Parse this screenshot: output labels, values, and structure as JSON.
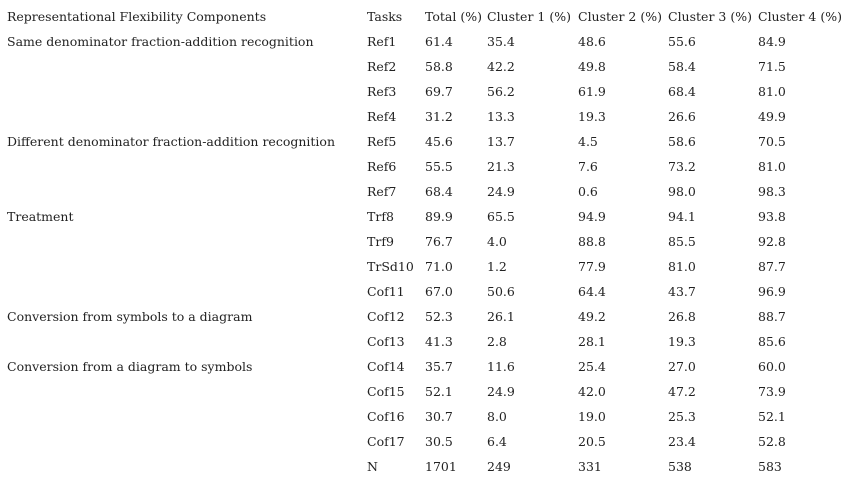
{
  "table": {
    "header": [
      "Representational Flexibility Components",
      "Tasks",
      "Total (%)",
      "Cluster 1 (%)",
      "Cluster 2 (%)",
      "Cluster 3 (%)",
      "Cluster 4 (%)"
    ],
    "groups": [
      {
        "component": "Same denominator fraction-addition recognition",
        "rows": [
          [
            "Ref1",
            "61.4",
            "35.4",
            "48.6",
            "55.6",
            "84.9"
          ],
          [
            "Ref2",
            "58.8",
            "42.2",
            "49.8",
            "58.4",
            "71.5"
          ],
          [
            "Ref3",
            "69.7",
            "56.2",
            "61.9",
            "68.4",
            "81.0"
          ],
          [
            "Ref4",
            "31.2",
            "13.3",
            "19.3",
            "26.6",
            "49.9"
          ]
        ]
      },
      {
        "component": "Different denominator fraction-addition recognition",
        "rows": [
          [
            "Ref5",
            "45.6",
            "13.7",
            "4.5",
            "58.6",
            "70.5"
          ],
          [
            "Ref6",
            "55.5",
            "21.3",
            "7.6",
            "73.2",
            "81.0"
          ],
          [
            "Ref7",
            "68.4",
            "24.9",
            "0.6",
            "98.0",
            "98.3"
          ]
        ]
      },
      {
        "component": "Treatment",
        "rows": [
          [
            "Trf8",
            "89.9",
            "65.5",
            "94.9",
            "94.1",
            "93.8"
          ],
          [
            "Trf9",
            "76.7",
            "4.0",
            "88.8",
            "85.5",
            "92.8"
          ],
          [
            "TrSd10",
            "71.0",
            "1.2",
            "77.9",
            "81.0",
            "87.7"
          ],
          [
            "Cof11",
            "67.0",
            "50.6",
            "64.4",
            "43.7",
            "96.9"
          ]
        ]
      },
      {
        "component": "Conversion from symbols to a diagram",
        "rows": [
          [
            "Cof12",
            "52.3",
            "26.1",
            "49.2",
            "26.8",
            "88.7"
          ],
          [
            "Cof13",
            "41.3",
            "2.8",
            "28.1",
            "19.3",
            "85.6"
          ]
        ]
      },
      {
        "component": "Conversion from a diagram to symbols",
        "rows": [
          [
            "Cof14",
            "35.7",
            "11.6",
            "25.4",
            "27.0",
            "60.0"
          ],
          [
            "Cof15",
            "52.1",
            "24.9",
            "42.0",
            "47.2",
            "73.9"
          ],
          [
            "Cof16",
            "30.7",
            "8.0",
            "19.0",
            "25.3",
            "52.1"
          ],
          [
            "Cof17",
            "30.5",
            "6.4",
            "20.5",
            "23.4",
            "52.8"
          ]
        ]
      }
    ],
    "footer": [
      "N",
      "1701",
      "249",
      "331",
      "538",
      "583"
    ]
  }
}
